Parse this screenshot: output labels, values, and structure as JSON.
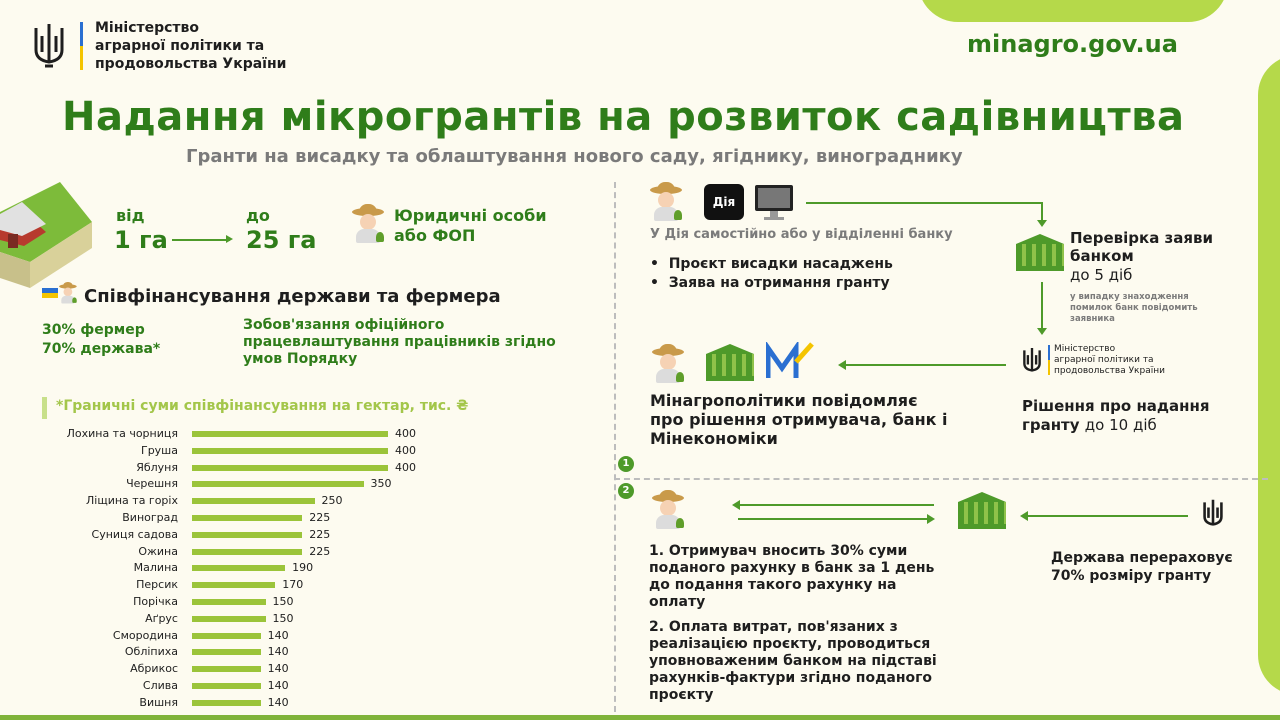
{
  "header": {
    "ministry_line1": "Міністерство",
    "ministry_line2": "аграрної політики та",
    "ministry_line3": "продовольства України",
    "website": "minagro.gov.ua"
  },
  "title": "Надання мікрогрантів на розвиток садівництва",
  "subtitle": "Гранти на висадку та облаштування нового саду, ягіднику, винограднику",
  "area": {
    "from_label": "від",
    "from_value": "1 га",
    "to_label": "до",
    "to_value": "25 га",
    "applicant": "Юридичні особи\nабо ФОП"
  },
  "cofinancing": {
    "heading": "Співфінансування держави та фермера",
    "farmer_share": "30% фермер",
    "state_share": "70% держава*",
    "obligation": "Зобов'язання офіційного працевлаштування працівників згідно умов Порядку"
  },
  "chart_data": {
    "type": "bar",
    "title": "*Граничні суми співфінансування на гектар, тис. ₴",
    "categories": [
      "Лохина та чорниця",
      "Груша",
      "Яблуня",
      "Черешня",
      "Ліщина та горіх",
      "Виноград",
      "Суниця садова",
      "Ожина",
      "Малина",
      "Персик",
      "Порічка",
      "Аґрус",
      "Смородина",
      "Обліпиха",
      "Абрикос",
      "Слива",
      "Вишня"
    ],
    "values": [
      400,
      400,
      400,
      350,
      250,
      225,
      225,
      225,
      190,
      170,
      150,
      150,
      140,
      140,
      140,
      140,
      140
    ],
    "xlim": [
      0,
      400
    ],
    "grid": false
  },
  "flow": {
    "diia_label": "Дія",
    "apply_text": "У Дія самостійно або у відділенні банку",
    "bullets": [
      "Проєкт висадки насаджень",
      "Заява на отримання гранту"
    ],
    "bank_check_title": "Перевірка заяви банком",
    "bank_check_time": "до 5 діб",
    "bank_check_note": "у випадку знаходження помилок банк повідомить заявника",
    "ministry_small_1": "Міністерство",
    "ministry_small_2": "аграрної політики та",
    "ministry_small_3": "продовольства України",
    "decision_title": "Рішення про надання грантy",
    "decision_time": "до 10 діб",
    "notify_text": "Мінагрополітики повідомляє про рішення отримувача, банк і Мінекономіки",
    "step1": "1",
    "step2": "2",
    "payment_1": "1. Отримувач вносить 30% суми поданого рахунку в банк за 1 день до подання такого рахунку на оплату",
    "payment_2": "2. Оплата витрат, пов'язаних з реалізацією проєкту, проводиться уповноваженим банком на підставі рахунків-фактури згідно поданого проєкту",
    "state_transfer": "Держава перераховує 70% розміру гранту"
  }
}
